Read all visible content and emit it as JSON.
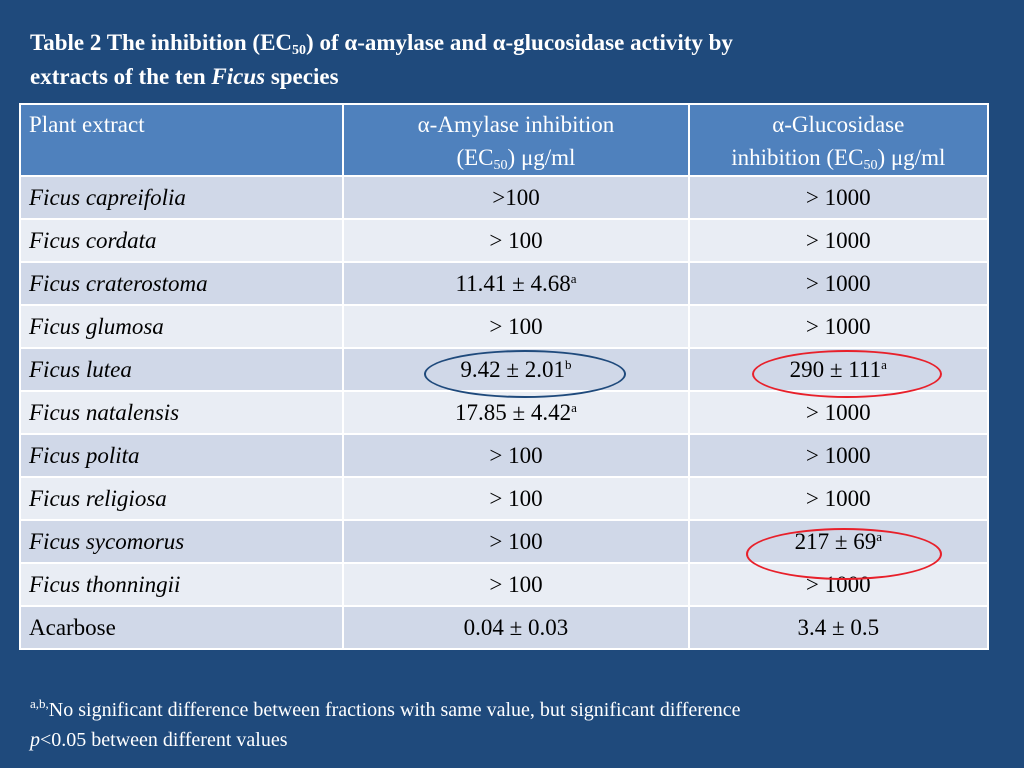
{
  "title": {
    "part1": "Table 2 The inhibition (EC",
    "sub": "50",
    "part2": ") of  α-amylase and α-glucosidase activity by",
    "part3": "extracts of the ten ",
    "italic": "Ficus",
    "part4": " species"
  },
  "header": {
    "col1": "Plant extract",
    "col2_line1": "α-Amylase inhibition",
    "col2_pre": "(EC",
    "col2_sub": "50",
    "col2_post": ") μg/ml",
    "col3_line1": "α-Glucosidase",
    "col3_pre": "inhibition (EC",
    "col3_sub": "50",
    "col3_post": ") μg/ml"
  },
  "rows": [
    {
      "name": "Ficus capreifolia",
      "amylase": ">100",
      "amylase_sup": "",
      "glucosidase": "> 1000",
      "glucosidase_sup": ""
    },
    {
      "name": "Ficus cordata",
      "amylase": "> 100",
      "amylase_sup": "",
      "glucosidase": "> 1000",
      "glucosidase_sup": ""
    },
    {
      "name": "Ficus craterostoma",
      "amylase": "11.41 ± 4.68",
      "amylase_sup": "a",
      "glucosidase": "> 1000",
      "glucosidase_sup": ""
    },
    {
      "name": "Ficus glumosa",
      "amylase": "> 100",
      "amylase_sup": "",
      "glucosidase": "> 1000",
      "glucosidase_sup": ""
    },
    {
      "name": "Ficus lutea",
      "amylase": "9.42 ± 2.01",
      "amylase_sup": "b",
      "glucosidase": "290 ± 111",
      "glucosidase_sup": "a"
    },
    {
      "name": "Ficus natalensis",
      "amylase": "17.85 ± 4.42",
      "amylase_sup": "a",
      "glucosidase": "> 1000",
      "glucosidase_sup": ""
    },
    {
      "name": "Ficus polita",
      "amylase": "> 100",
      "amylase_sup": "",
      "glucosidase": "> 1000",
      "glucosidase_sup": ""
    },
    {
      "name": "Ficus religiosa",
      "amylase": "> 100",
      "amylase_sup": "",
      "glucosidase": "> 1000",
      "glucosidase_sup": ""
    },
    {
      "name": "Ficus sycomorus",
      "amylase": "> 100",
      "amylase_sup": "",
      "glucosidase": "217 ± 69",
      "glucosidase_sup": "a"
    },
    {
      "name": "Ficus thonningii",
      "amylase": "> 100",
      "amylase_sup": "",
      "glucosidase": "> 1000",
      "glucosidase_sup": ""
    },
    {
      "name": "Acarbose",
      "amylase": "0.04 ± 0.03",
      "amylase_sup": "",
      "glucosidase": "3.4 ± 0.5",
      "glucosidase_sup": ""
    }
  ],
  "footnote": {
    "sup": "a,b,",
    "line1": "No significant difference between fractions with same value, but significant difference",
    "p": "p",
    "line2": "<0.05 between different values"
  },
  "colors": {
    "background": "#1f4a7c",
    "header_fill": "#4f81bd",
    "row_odd": "#d0d8e8",
    "row_even": "#e9edf4",
    "oval_blue": "#1f4a7c",
    "oval_red": "#e8202a"
  }
}
